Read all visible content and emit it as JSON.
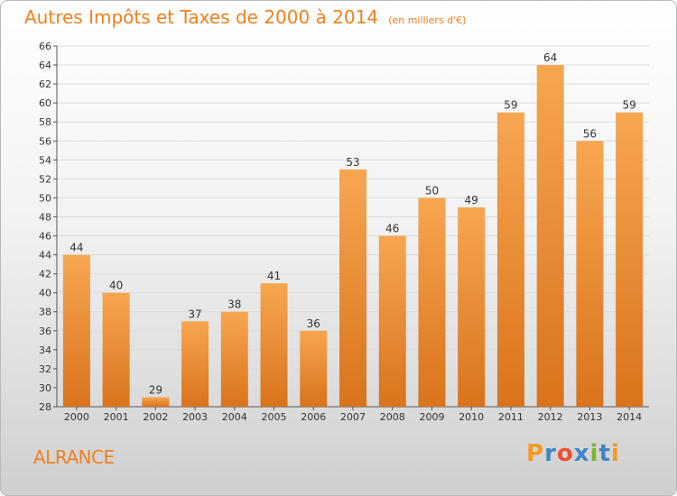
{
  "header": {
    "title": "Autres Impôts et Taxes de 2000 à 2014",
    "subtitle": "(en milliers d'€)"
  },
  "commune": "ALRANCE",
  "logo": {
    "text": "Proxiti",
    "letters": [
      "P",
      "r",
      "o",
      "x",
      "i",
      "t",
      "i"
    ],
    "colors": [
      "#f39a21",
      "#3f86c8",
      "#ef4f2f",
      "#3f86c8",
      "#7cb832",
      "#3f86c8",
      "#f39a21"
    ]
  },
  "colors": {
    "bar_top": "#f7a650",
    "bar_bottom": "#d9731c",
    "accent": "#f0801e"
  },
  "chart_data": {
    "type": "bar",
    "title": "Autres Impôts et Taxes de 2000 à 2014",
    "subtitle": "(en milliers d'€)",
    "categories": [
      "2000",
      "2001",
      "2002",
      "2003",
      "2004",
      "2005",
      "2006",
      "2007",
      "2008",
      "2009",
      "2010",
      "2011",
      "2012",
      "2013",
      "2014"
    ],
    "values": [
      44,
      40,
      29,
      37,
      38,
      41,
      36,
      53,
      46,
      50,
      49,
      59,
      64,
      56,
      59
    ],
    "ylim": [
      28,
      66
    ],
    "yticks": [
      28,
      30,
      32,
      34,
      36,
      38,
      40,
      42,
      44,
      46,
      48,
      50,
      52,
      54,
      56,
      58,
      60,
      62,
      64,
      66
    ],
    "grid": true,
    "legend": "none"
  }
}
